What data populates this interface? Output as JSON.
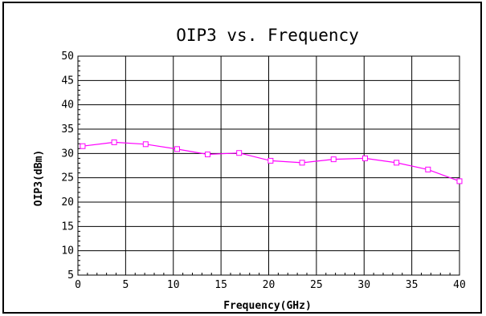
{
  "chart_data": {
    "type": "line",
    "title": "OIP3 vs. Frequency",
    "xlabel": "Frequency(GHz)",
    "ylabel": "OIP3(dBm)",
    "xlim": [
      0,
      40
    ],
    "ylim": [
      5,
      50
    ],
    "x_ticks": [
      0,
      5,
      10,
      15,
      20,
      25,
      30,
      35,
      40
    ],
    "y_ticks": [
      5,
      10,
      15,
      20,
      25,
      30,
      35,
      40,
      45,
      50
    ],
    "grid": true,
    "series": [
      {
        "color": "#ff00ff",
        "marker": "square",
        "x": [
          0.5,
          3.8,
          7.1,
          10.4,
          13.6,
          16.9,
          20.2,
          23.5,
          26.8,
          30.1,
          33.4,
          36.7,
          40.0
        ],
        "y": [
          31.5,
          32.3,
          31.9,
          30.9,
          29.8,
          30.1,
          28.5,
          28.1,
          28.8,
          29.0,
          28.1,
          26.7,
          24.3
        ]
      }
    ]
  }
}
